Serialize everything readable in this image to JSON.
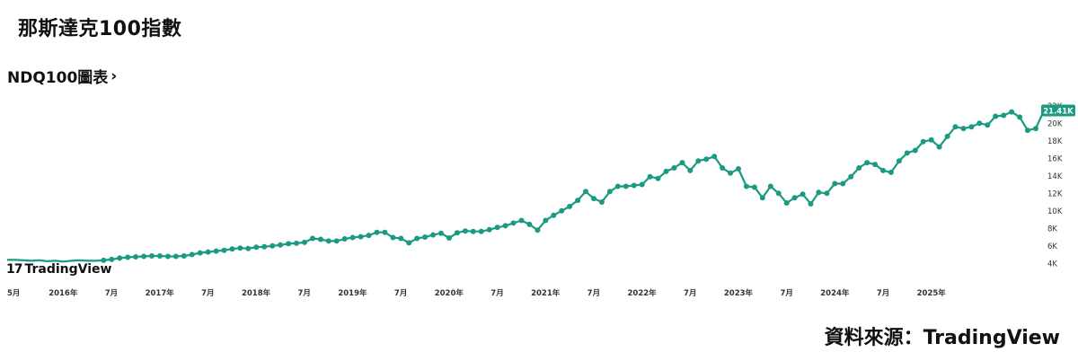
{
  "header": {
    "title": "那斯達克100指數"
  },
  "chart_link": {
    "label": "NDQ100圖表",
    "chevron": "›"
  },
  "source": {
    "label": "資料來源：TradingView"
  },
  "logo": {
    "mark": "17",
    "name": "TradingView"
  },
  "colors": {
    "line": "#1a9a80",
    "badge": "#1a9a80",
    "axis_text": "#333333"
  },
  "chart_data": {
    "type": "line",
    "title": "",
    "xlabel": "",
    "ylabel": "",
    "x_start": 2015.42,
    "x_step": 0.0833,
    "xlim": [
      2015.42,
      2025.85
    ],
    "ylim": [
      2800,
      23000
    ],
    "grid": false,
    "y_ticks": [
      {
        "v": 4000,
        "label": "4K"
      },
      {
        "v": 6000,
        "label": "6K"
      },
      {
        "v": 8000,
        "label": "8K"
      },
      {
        "v": 10000,
        "label": "10K"
      },
      {
        "v": 12000,
        "label": "12K"
      },
      {
        "v": 14000,
        "label": "14K"
      },
      {
        "v": 16000,
        "label": "16K"
      },
      {
        "v": 18000,
        "label": "18K"
      },
      {
        "v": 20000,
        "label": "20K"
      },
      {
        "v": 22000,
        "label": "22K"
      }
    ],
    "x_ticks": [
      {
        "v": 2015.42,
        "label": "5月"
      },
      {
        "v": 2016.0,
        "label": "2016年"
      },
      {
        "v": 2016.5,
        "label": "7月"
      },
      {
        "v": 2017.0,
        "label": "2017年"
      },
      {
        "v": 2017.5,
        "label": "7月"
      },
      {
        "v": 2018.0,
        "label": "2018年"
      },
      {
        "v": 2018.5,
        "label": "7月"
      },
      {
        "v": 2019.0,
        "label": "2019年"
      },
      {
        "v": 2019.5,
        "label": "7月"
      },
      {
        "v": 2020.0,
        "label": "2020年"
      },
      {
        "v": 2020.5,
        "label": "7月"
      },
      {
        "v": 2021.0,
        "label": "2021年"
      },
      {
        "v": 2021.5,
        "label": "7月"
      },
      {
        "v": 2022.0,
        "label": "2022年"
      },
      {
        "v": 2022.5,
        "label": "7月"
      },
      {
        "v": 2023.0,
        "label": "2023年"
      },
      {
        "v": 2023.5,
        "label": "7月"
      },
      {
        "v": 2024.0,
        "label": "2024年"
      },
      {
        "v": 2024.5,
        "label": "7月"
      },
      {
        "v": 2025.0,
        "label": "2025年"
      }
    ],
    "last_value_label": "21.41K",
    "series": [
      {
        "values": [
          4400,
          4400,
          4350,
          4300,
          4350,
          4250,
          4300,
          4200,
          4300,
          4350,
          4300,
          4300,
          4350,
          4450,
          4600,
          4700,
          4750,
          4800,
          4850,
          4850,
          4800,
          4800,
          4850,
          5000,
          5200,
          5300,
          5400,
          5500,
          5650,
          5750,
          5700,
          5850,
          5900,
          6000,
          6100,
          6250,
          6300,
          6400,
          6850,
          6750,
          6550,
          6550,
          6800,
          6950,
          7050,
          7200,
          7550,
          7550,
          6950,
          6850,
          6350,
          6850,
          7000,
          7250,
          7450,
          6900,
          7500,
          7700,
          7650,
          7650,
          7850,
          8100,
          8300,
          8600,
          8900,
          8450,
          7800,
          8900,
          9500,
          10000,
          10500,
          11200,
          12200,
          11400,
          11000,
          12200,
          12800,
          12800,
          12900,
          13000,
          13900,
          13700,
          14500,
          14900,
          15500,
          14600,
          15700,
          15900,
          16200,
          14900,
          14300,
          14800,
          12800,
          12700,
          11500,
          12800,
          12000,
          10900,
          11500,
          11900,
          10800,
          12100,
          12000,
          13100,
          13100,
          13900,
          14900,
          15500,
          15300,
          14600,
          14400,
          15700,
          16600,
          16900,
          17900,
          18100,
          17300,
          18500,
          19600,
          19400,
          19600,
          20000,
          19800,
          20800,
          20900,
          21300,
          20700,
          19200,
          19400,
          21410
        ]
      }
    ]
  }
}
